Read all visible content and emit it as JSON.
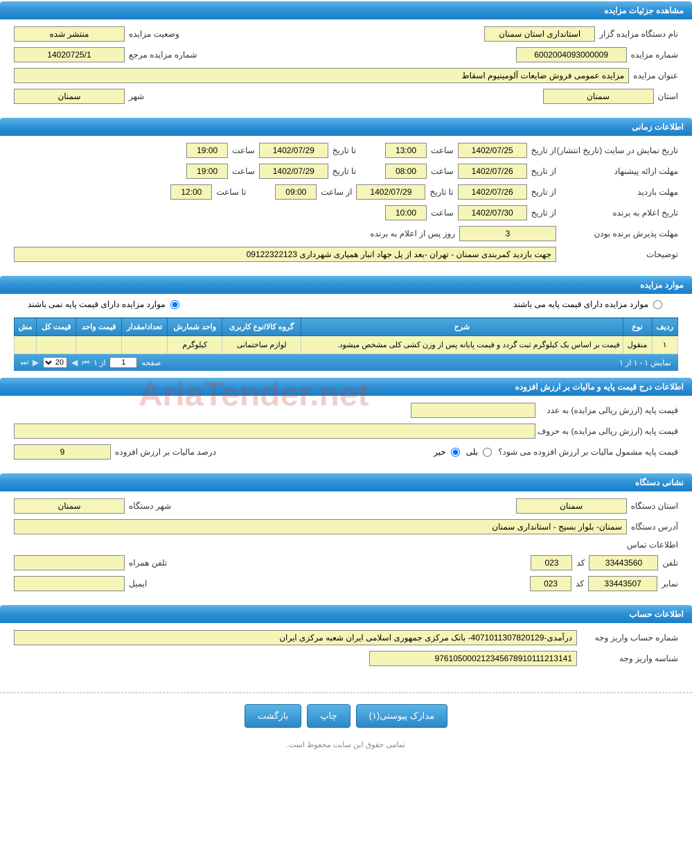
{
  "sections": {
    "details": "مشاهده جزئیات مزایده",
    "time": "اطلاعات زمانی",
    "items": "موارد مزایده",
    "vat": "اطلاعات درج قیمت پایه و مالیات بر ارزش افزوده",
    "org": "نشانی دستگاه",
    "account": "اطلاعات حساب"
  },
  "details": {
    "org_label": "نام دستگاه مزایده گزار",
    "org_value": "استانداری استان سمنان",
    "status_label": "وضعیت مزایده",
    "status_value": "منتشر شده",
    "num_label": "شماره مزایده",
    "num_value": "6002004093000009",
    "ref_label": "شماره مزایده مرجع",
    "ref_value": "14020725/1",
    "title_label": "عنوان مزایده",
    "title_value": "مزایده عمومی فروش ضایعات آلومینیوم اسقاط",
    "province_label": "استان",
    "province_value": "سمنان",
    "city_label": "شهر",
    "city_value": "سمنان"
  },
  "time": {
    "publish_label": "تاریخ نمایش در سایت (تاریخ انتشار)",
    "from_date": "از تاریخ",
    "to_date": "تا تاریخ",
    "time_lbl": "ساعت",
    "from_time": "از ساعت",
    "to_time": "تا ساعت",
    "publish_from_d": "1402/07/25",
    "publish_from_t": "13:00",
    "publish_to_d": "1402/07/29",
    "publish_to_t": "19:00",
    "bid_label": "مهلت ارائه پیشنهاد",
    "bid_from_d": "1402/07/26",
    "bid_from_t": "08:00",
    "bid_to_d": "1402/07/29",
    "bid_to_t": "19:00",
    "visit_label": "مهلت بازدید",
    "visit_from_d": "1402/07/26",
    "visit_to_d": "1402/07/29",
    "visit_from_t": "09:00",
    "visit_to_t": "12:00",
    "winner_label": "تاریخ اعلام به برنده",
    "winner_d": "1402/07/30",
    "winner_t": "10:00",
    "accept_label": "مهلت پذیرش برنده بودن",
    "accept_days": "3",
    "accept_suffix": "روز پس از اعلام به برنده",
    "notes_label": "توضیحات",
    "notes_value": "جهت بازدید کمربندی سمنان - تهران -بعد از پل جهاد انبار همیاری شهرداری 09122322123"
  },
  "items_radio": {
    "has_base": "موارد مزایده دارای قیمت پایه می باشند",
    "no_base": "موارد مزایده دارای قیمت پایه نمی باشند"
  },
  "table": {
    "headers": [
      "ردیف",
      "نوع",
      "شرح",
      "گروه کالا/نوع کاربری",
      "واحد شمارش",
      "تعداد/مقدار",
      "قیمت واحد",
      "قیمت کل",
      "مش"
    ],
    "rows": [
      [
        "۱",
        "منقول",
        "قیمت بر اساس یک کیلوگرم ثبت گردد و قیمت پایانه پس از وزن کشی کلی مشخص میشود.",
        "لوازم ساختمانی",
        "کیلوگرم",
        "",
        "",
        "",
        ""
      ]
    ]
  },
  "pager": {
    "display": "نمایش ۱ - ۱ از ۱",
    "page_lbl": "صفحه",
    "of_lbl": "از ۱",
    "page_val": "1",
    "size_val": "20"
  },
  "vat": {
    "base_num_label": "قیمت پایه (ارزش ریالی مزایده) به عدد",
    "base_txt_label": "قیمت پایه (ارزش ریالی مزایده) به حروف",
    "vat_q": "قیمت پایه مشمول مالیات بر ارزش افزوده می شود؟",
    "yes": "بلی",
    "no": "خیر",
    "pct_label": "درصد مالیات بر ارزش افزوده",
    "pct_value": "9"
  },
  "org": {
    "province_label": "استان دستگاه",
    "province_value": "سمنان",
    "city_label": "شهر دستگاه",
    "city_value": "سمنان",
    "addr_label": "آدرس دستگاه",
    "addr_value": "سمنان- بلوار بسیج - استانداری سمنان",
    "contact_label": "اطلاعات تماس",
    "phone_label": "تلفن",
    "phone_value": "33443560",
    "code_label": "کد",
    "phone_code": "023",
    "mobile_label": "تلفن همراه",
    "fax_label": "نمابر",
    "fax_value": "33443507",
    "fax_code": "023",
    "email_label": "ایمیل"
  },
  "account": {
    "acct_label": "شماره حساب واریز وجه",
    "acct_value": "درآمدی-4071011307820129- بانک مرکزی جمهوری اسلامی ایران شعبه مرکزی ایران",
    "id_label": "شناسه واریز وجه",
    "id_value": "976105000212345678910111213141"
  },
  "buttons": {
    "docs": "مدارک پیوستی(۱)",
    "print": "چاپ",
    "back": "بازگشت"
  },
  "footer": "تمامی حقوق این سایت محفوظ است.",
  "watermark": "AriaTender.net",
  "colors": {
    "header_grad_top": "#5bb5e8",
    "header_grad_bot": "#2a88c8",
    "field_bg": "#f5f5b8"
  }
}
